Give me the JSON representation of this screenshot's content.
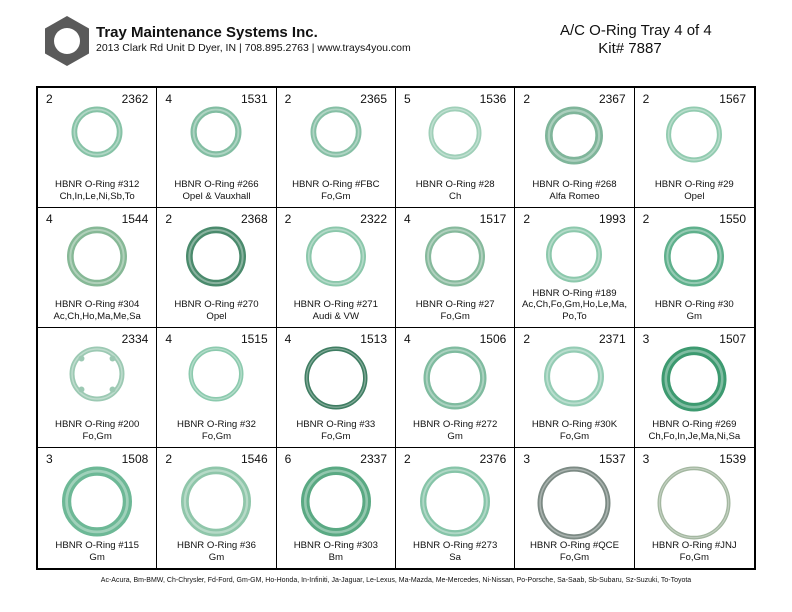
{
  "header": {
    "company": "Tray Maintenance Systems Inc.",
    "address": "2013 Clark Rd Unit D Dyer, IN | 708.895.2763 | www.trays4you.com",
    "title_line1": "A/C O-Ring Tray 4 of 4",
    "title_line2": "Kit# 7887"
  },
  "colors": {
    "ring_base": "#7fbfa3",
    "ring_dark": "#3e8f6a",
    "ring_gray": "#8a9a92"
  },
  "cells": [
    {
      "qty": "2",
      "num": "2362",
      "line1": "HBNR O-Ring #312",
      "line2": "Ch,In,Le,Ni,Sb,To",
      "line3": "",
      "ring": {
        "size": 0.62,
        "thick": 0.11,
        "color": "#86c2a6",
        "notched": false
      }
    },
    {
      "qty": "4",
      "num": "1531",
      "line1": "HBNR O-Ring #266",
      "line2": "Opel & Vauxhall",
      "line3": "",
      "ring": {
        "size": 0.62,
        "thick": 0.12,
        "color": "#82bda2",
        "notched": false
      }
    },
    {
      "qty": "2",
      "num": "2365",
      "line1": "HBNR O-Ring #FBC",
      "line2": "Fo,Gm",
      "line3": "",
      "ring": {
        "size": 0.62,
        "thick": 0.11,
        "color": "#86bfa5",
        "notched": false
      }
    },
    {
      "qty": "5",
      "num": "1536",
      "line1": "HBNR O-Ring #28",
      "line2": "Ch",
      "line3": "",
      "ring": {
        "size": 0.64,
        "thick": 0.09,
        "color": "#9fcfb8",
        "notched": false
      }
    },
    {
      "qty": "2",
      "num": "2367",
      "line1": "HBNR O-Ring #268",
      "line2": "Alfa Romeo",
      "line3": "",
      "ring": {
        "size": 0.7,
        "thick": 0.13,
        "color": "#7fb59a",
        "notched": false
      }
    },
    {
      "qty": "2",
      "num": "1567",
      "line1": "HBNR O-Ring #29",
      "line2": "Opel",
      "line3": "",
      "ring": {
        "size": 0.68,
        "thick": 0.09,
        "color": "#92cbb0",
        "notched": false
      }
    },
    {
      "qty": "4",
      "num": "1544",
      "line1": "HBNR O-Ring #304",
      "line2": "Ac,Ch,Ho,Ma,Me,Sa",
      "line3": "",
      "ring": {
        "size": 0.72,
        "thick": 0.11,
        "color": "#86b896",
        "notched": false
      }
    },
    {
      "qty": "2",
      "num": "2368",
      "line1": "HBNR O-Ring #270",
      "line2": "Opel",
      "line3": "",
      "ring": {
        "size": 0.72,
        "thick": 0.11,
        "color": "#4a8a6c",
        "notched": false
      }
    },
    {
      "qty": "2",
      "num": "2322",
      "line1": "HBNR O-Ring #271",
      "line2": "Audi & VW",
      "line3": "",
      "ring": {
        "size": 0.72,
        "thick": 0.09,
        "color": "#8bc7ab",
        "notched": false
      }
    },
    {
      "qty": "4",
      "num": "1517",
      "line1": "HBNR O-Ring #27",
      "line2": "Fo,Gm",
      "line3": "",
      "ring": {
        "size": 0.72,
        "thick": 0.1,
        "color": "#86b99c",
        "notched": false
      }
    },
    {
      "qty": "2",
      "num": "1993",
      "line1": "HBNR O-Ring #189",
      "line2": "Ac,Ch,Fo,Gm,Ho,Le,Ma,",
      "line3": "Po,To",
      "ring": {
        "size": 0.68,
        "thick": 0.1,
        "color": "#8cc8ac",
        "notched": false
      }
    },
    {
      "qty": "2",
      "num": "1550",
      "line1": "HBNR O-Ring #30",
      "line2": "Gm",
      "line3": "",
      "ring": {
        "size": 0.72,
        "thick": 0.11,
        "color": "#5fb08c",
        "notched": false
      }
    },
    {
      "qty": "",
      "num": "2334",
      "line1": "HBNR O-Ring #200",
      "line2": "Fo,Gm",
      "line3": "",
      "ring": {
        "size": 0.66,
        "thick": 0.09,
        "color": "#9cc9b3",
        "notched": true
      }
    },
    {
      "qty": "4",
      "num": "1515",
      "line1": "HBNR O-Ring #32",
      "line2": "Fo,Gm",
      "line3": "",
      "ring": {
        "size": 0.66,
        "thick": 0.08,
        "color": "#8ccaae",
        "notched": false
      }
    },
    {
      "qty": "4",
      "num": "1513",
      "line1": "HBNR O-Ring #33",
      "line2": "Fo,Gm",
      "line3": "",
      "ring": {
        "size": 0.76,
        "thick": 0.07,
        "color": "#3f7d62",
        "notched": false
      }
    },
    {
      "qty": "4",
      "num": "1506",
      "line1": "HBNR O-Ring #272",
      "line2": "Gm",
      "line3": "",
      "ring": {
        "size": 0.76,
        "thick": 0.1,
        "color": "#7fbb9f",
        "notched": false
      }
    },
    {
      "qty": "2",
      "num": "2371",
      "line1": "HBNR O-Ring #30K",
      "line2": "Fo,Gm",
      "line3": "",
      "ring": {
        "size": 0.72,
        "thick": 0.1,
        "color": "#94ccb4",
        "notched": false
      }
    },
    {
      "qty": "3",
      "num": "1507",
      "line1": "HBNR O-Ring #269",
      "line2": "Ch,Fo,In,Je,Ma,Ni,Sa",
      "line3": "",
      "ring": {
        "size": 0.78,
        "thick": 0.13,
        "color": "#3d9a70",
        "notched": false
      }
    },
    {
      "qty": "3",
      "num": "1508",
      "line1": "HBNR O-Ring #115",
      "line2": "Gm",
      "line3": "",
      "ring": {
        "size": 0.84,
        "thick": 0.13,
        "color": "#6db896",
        "notched": false
      }
    },
    {
      "qty": "2",
      "num": "1546",
      "line1": "HBNR O-Ring #36",
      "line2": "Gm",
      "line3": "",
      "ring": {
        "size": 0.84,
        "thick": 0.11,
        "color": "#8fc6aa",
        "notched": false
      }
    },
    {
      "qty": "6",
      "num": "2337",
      "line1": "HBNR O-Ring #303",
      "line2": "Bm",
      "line3": "",
      "ring": {
        "size": 0.84,
        "thick": 0.12,
        "color": "#5aa983",
        "notched": false
      }
    },
    {
      "qty": "2",
      "num": "2376",
      "line1": "HBNR O-Ring #273",
      "line2": "Sa",
      "line3": "",
      "ring": {
        "size": 0.84,
        "thick": 0.09,
        "color": "#86c4a8",
        "notched": false
      }
    },
    {
      "qty": "3",
      "num": "1537",
      "line1": "HBNR O-Ring #QCE",
      "line2": "Fo,Gm",
      "line3": "",
      "ring": {
        "size": 0.88,
        "thick": 0.07,
        "color": "#7c8a84",
        "notched": false
      }
    },
    {
      "qty": "3",
      "num": "1539",
      "line1": "HBNR O-Ring #JNJ",
      "line2": "Fo,Gm",
      "line3": "",
      "ring": {
        "size": 0.88,
        "thick": 0.05,
        "color": "#a3b7a0",
        "notched": false
      }
    }
  ],
  "footer": "Ac-Acura, Bm-BMW, Ch-Chrysler, Fd-Ford, Gm-GM, Ho-Honda, In-Infiniti, Ja-Jaguar, Le-Lexus, Ma-Mazda, Me-Mercedes, Ni-Nissan, Po-Porsche, Sa-Saab, Sb-Subaru, Sz-Suzuki, To-Toyota"
}
